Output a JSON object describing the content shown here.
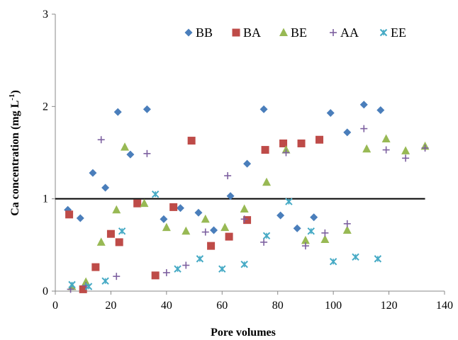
{
  "chart_data": {
    "type": "scatter",
    "title": "",
    "xlabel": "Pore volumes",
    "ylabel": "Ca concentration (mg L",
    "ylabel_sup": "-1",
    "ylabel_close": ")",
    "xlim": [
      0,
      140
    ],
    "ylim": [
      0,
      3
    ],
    "xticks": [
      "0",
      "20",
      "40",
      "60",
      "80",
      "100",
      "120",
      "140"
    ],
    "yticks": [
      "0",
      "1",
      "2",
      "3"
    ],
    "grid": false,
    "legend_position": "top",
    "reference_line": {
      "y": 1,
      "color": "#000000"
    },
    "series": [
      {
        "name": "BB",
        "marker": "diamond",
        "color": "#4A7EBB",
        "points": [
          [
            4.5,
            0.88
          ],
          [
            9,
            0.79
          ],
          [
            13.5,
            1.28
          ],
          [
            18,
            1.12
          ],
          [
            22.5,
            1.94
          ],
          [
            27,
            1.48
          ],
          [
            33,
            1.97
          ],
          [
            39,
            0.78
          ],
          [
            45,
            0.9
          ],
          [
            51.5,
            0.85
          ],
          [
            57,
            0.66
          ],
          [
            63,
            1.03
          ],
          [
            69,
            1.38
          ],
          [
            75,
            1.97
          ],
          [
            81,
            0.82
          ],
          [
            87,
            0.68
          ],
          [
            93,
            0.8
          ],
          [
            99,
            1.93
          ],
          [
            105,
            1.72
          ],
          [
            111,
            2.02
          ],
          [
            117,
            1.96
          ]
        ]
      },
      {
        "name": "BA",
        "marker": "square",
        "color": "#BE4B48",
        "points": [
          [
            5,
            0.83
          ],
          [
            10,
            0.02
          ],
          [
            14.5,
            0.26
          ],
          [
            20,
            0.62
          ],
          [
            23,
            0.53
          ],
          [
            29.5,
            0.95
          ],
          [
            36,
            0.17
          ],
          [
            42.5,
            0.91
          ],
          [
            49,
            1.63
          ],
          [
            56,
            0.49
          ],
          [
            62.5,
            0.59
          ],
          [
            69,
            0.77
          ],
          [
            75.5,
            1.53
          ],
          [
            82,
            1.6
          ],
          [
            88.5,
            1.6
          ],
          [
            95,
            1.64
          ]
        ]
      },
      {
        "name": "BE",
        "marker": "triangle",
        "color": "#98B954",
        "points": [
          [
            6,
            0.05
          ],
          [
            11,
            0.1
          ],
          [
            16.5,
            0.53
          ],
          [
            22,
            0.88
          ],
          [
            25,
            1.56
          ],
          [
            32,
            0.95
          ],
          [
            40,
            0.69
          ],
          [
            47,
            0.65
          ],
          [
            54,
            0.78
          ],
          [
            61,
            0.69
          ],
          [
            68,
            0.89
          ],
          [
            76,
            1.18
          ],
          [
            83,
            1.53
          ],
          [
            90,
            0.55
          ],
          [
            97,
            0.56
          ],
          [
            105,
            0.66
          ],
          [
            112,
            1.54
          ],
          [
            119,
            1.65
          ],
          [
            126,
            1.52
          ],
          [
            133,
            1.57
          ]
        ]
      },
      {
        "name": "AA",
        "marker": "plus",
        "color": "#7D60A0",
        "points": [
          [
            5.5,
            0.02
          ],
          [
            11,
            0.06
          ],
          [
            16.5,
            1.64
          ],
          [
            22,
            0.16
          ],
          [
            33,
            1.49
          ],
          [
            40,
            0.2
          ],
          [
            47,
            0.28
          ],
          [
            54,
            0.64
          ],
          [
            62,
            1.25
          ],
          [
            68,
            0.78
          ],
          [
            75,
            0.53
          ],
          [
            83,
            1.5
          ],
          [
            90,
            0.49
          ],
          [
            97,
            0.63
          ],
          [
            105,
            0.73
          ],
          [
            111,
            1.76
          ],
          [
            119,
            1.53
          ],
          [
            126,
            1.44
          ],
          [
            133,
            1.55
          ]
        ]
      },
      {
        "name": "EE",
        "marker": "star",
        "color": "#46AAC5",
        "points": [
          [
            6,
            0.07
          ],
          [
            12,
            0.05
          ],
          [
            18,
            0.11
          ],
          [
            24,
            0.65
          ],
          [
            36,
            1.05
          ],
          [
            44,
            0.24
          ],
          [
            52,
            0.35
          ],
          [
            60,
            0.24
          ],
          [
            68,
            0.29
          ],
          [
            76,
            0.6
          ],
          [
            84,
            0.97
          ],
          [
            92,
            0.65
          ],
          [
            100,
            0.32
          ],
          [
            108,
            0.37
          ],
          [
            116,
            0.35
          ]
        ]
      }
    ]
  }
}
